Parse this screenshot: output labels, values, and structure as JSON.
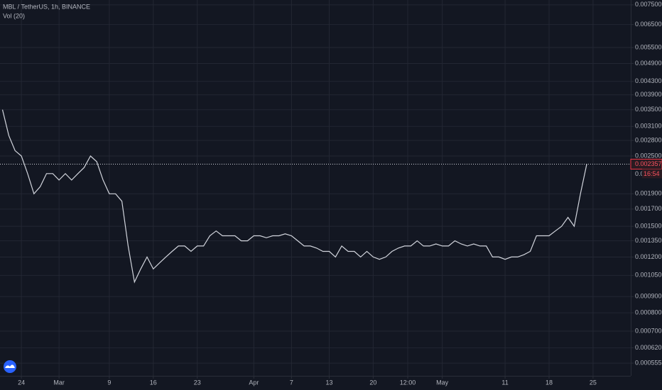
{
  "chart_data": {
    "type": "line",
    "title": "MBL / TetherUS, 1h, BINANCE",
    "indicator": "Vol (20)",
    "color": "#d1d4dc",
    "log_scale": true,
    "grid": true,
    "x": [
      0,
      1,
      2,
      3,
      4,
      5,
      6,
      7,
      8,
      9,
      10,
      11,
      12,
      13,
      14,
      15,
      16,
      17,
      18,
      19,
      20,
      21,
      22,
      23,
      24,
      25,
      26,
      27,
      28,
      29,
      30,
      31,
      32,
      33,
      34,
      35,
      36,
      37,
      38,
      39,
      40,
      41,
      42,
      43,
      44,
      45,
      46,
      47,
      48,
      49,
      50,
      51,
      52,
      53,
      54,
      55,
      56,
      57,
      58,
      59,
      60,
      61,
      62,
      63,
      64,
      65,
      66,
      67,
      68,
      69,
      70,
      71,
      72,
      73,
      74,
      75,
      76,
      77,
      78,
      79,
      80,
      81,
      82,
      83,
      84,
      85,
      86,
      87,
      88,
      89,
      90,
      91,
      92,
      93
    ],
    "values": [
      0.0035,
      0.0029,
      0.0026,
      0.0025,
      0.0022,
      0.0019,
      0.002,
      0.0022,
      0.0022,
      0.0021,
      0.0022,
      0.0021,
      0.0022,
      0.0023,
      0.0025,
      0.0024,
      0.0021,
      0.0019,
      0.0019,
      0.0018,
      0.0013,
      0.001,
      0.0011,
      0.0012,
      0.0011,
      0.00115,
      0.0012,
      0.00125,
      0.0013,
      0.0013,
      0.00125,
      0.0013,
      0.0013,
      0.0014,
      0.00145,
      0.0014,
      0.0014,
      0.0014,
      0.00135,
      0.00135,
      0.0014,
      0.0014,
      0.00138,
      0.0014,
      0.0014,
      0.00142,
      0.0014,
      0.00135,
      0.0013,
      0.0013,
      0.00128,
      0.00125,
      0.00125,
      0.0012,
      0.0013,
      0.00125,
      0.00125,
      0.0012,
      0.00125,
      0.0012,
      0.00118,
      0.0012,
      0.00125,
      0.00128,
      0.0013,
      0.0013,
      0.00135,
      0.0013,
      0.0013,
      0.00132,
      0.0013,
      0.0013,
      0.00135,
      0.00132,
      0.0013,
      0.00132,
      0.0013,
      0.0013,
      0.0012,
      0.0012,
      0.00118,
      0.0012,
      0.0012,
      0.00122,
      0.00125,
      0.0014,
      0.0014,
      0.0014,
      0.00145,
      0.0015,
      0.0016,
      0.0015,
      0.0019,
      0.00236
    ],
    "xlim": [
      -0.4,
      100
    ],
    "xticks": [
      {
        "value": 3,
        "label": "24"
      },
      {
        "value": 9,
        "label": "Mar"
      },
      {
        "value": 17,
        "label": "9"
      },
      {
        "value": 24,
        "label": "16"
      },
      {
        "value": 31,
        "label": "23"
      },
      {
        "value": 40,
        "label": "Apr"
      },
      {
        "value": 46,
        "label": "7"
      },
      {
        "value": 52,
        "label": "13"
      },
      {
        "value": 59,
        "label": "20"
      },
      {
        "value": 64.5,
        "label": "12:00"
      },
      {
        "value": 70,
        "label": "May"
      },
      {
        "value": 80,
        "label": "11"
      },
      {
        "value": 87,
        "label": "18"
      },
      {
        "value": 94,
        "label": "25"
      }
    ],
    "ylim": [
      0.000506,
      0.00777
    ],
    "yticks": [
      {
        "value": 0.0075,
        "label": "0.007500"
      },
      {
        "value": 0.0065,
        "label": "0.006500"
      },
      {
        "value": 0.0055,
        "label": "0.005500"
      },
      {
        "value": 0.0049,
        "label": "0.004900"
      },
      {
        "value": 0.0043,
        "label": "0.004300"
      },
      {
        "value": 0.0039,
        "label": "0.003900"
      },
      {
        "value": 0.0035,
        "label": "0.003500"
      },
      {
        "value": 0.0031,
        "label": "0.003100"
      },
      {
        "value": 0.0028,
        "label": "0.002800"
      },
      {
        "value": 0.0025,
        "label": "0.002500"
      },
      {
        "value": 0.0019,
        "label": "0.001900"
      },
      {
        "value": 0.0017,
        "label": "0.001700"
      },
      {
        "value": 0.0015,
        "label": "0.001500"
      },
      {
        "value": 0.00135,
        "label": "0.001350"
      },
      {
        "value": 0.0012,
        "label": "0.001200"
      },
      {
        "value": 0.00105,
        "label": "0.001050"
      },
      {
        "value": 0.0009,
        "label": "0.000900"
      },
      {
        "value": 0.0008,
        "label": "0.000800"
      },
      {
        "value": 0.0007,
        "label": "0.000700"
      },
      {
        "value": 0.00062,
        "label": "0.000620"
      },
      {
        "value": 0.000555,
        "label": "0.000555"
      }
    ],
    "price_line": {
      "value": 0.002357,
      "label": "0.002357",
      "color": "#f23645"
    },
    "countdown": {
      "prefix": "0.0",
      "time": "16:54"
    }
  }
}
